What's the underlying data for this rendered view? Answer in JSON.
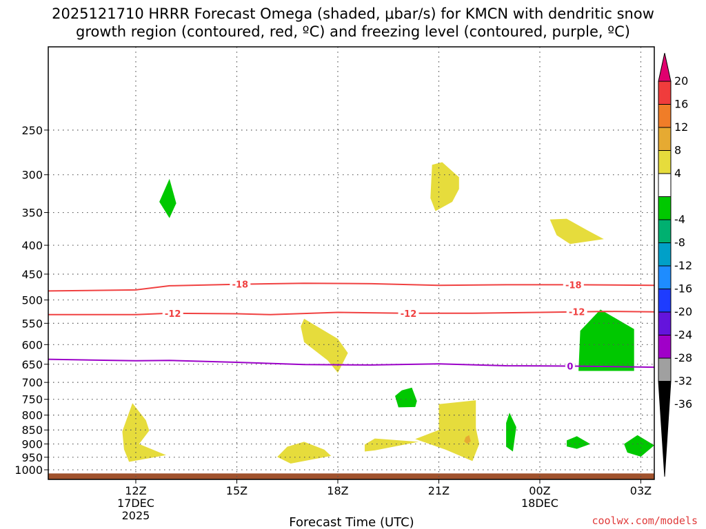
{
  "chart_data": {
    "type": "contour",
    "title_line1": "2025121710 HRRR Forecast Omega (shaded, μbar/s) for KMCN with dendritic snow",
    "title_line2": "growth region (contoured, red, ºC) and freezing level (contoured, purple, ºC)",
    "xlabel": "Forecast Time (UTC)",
    "credit": "coolwx.com/models",
    "x_range_hours": [
      9.4,
      27.4
    ],
    "y_range_hpa": [
      178,
      1040
    ],
    "x_ticks": [
      {
        "hour": 12,
        "label": "12Z",
        "sub1": "17DEC",
        "sub2": "2025"
      },
      {
        "hour": 15,
        "label": "15Z",
        "sub1": "",
        "sub2": ""
      },
      {
        "hour": 18,
        "label": "18Z",
        "sub1": "",
        "sub2": ""
      },
      {
        "hour": 21,
        "label": "21Z",
        "sub1": "",
        "sub2": ""
      },
      {
        "hour": 24,
        "label": "00Z",
        "sub1": "18DEC",
        "sub2": ""
      },
      {
        "hour": 27,
        "label": "03Z",
        "sub1": "",
        "sub2": ""
      }
    ],
    "y_ticks": [
      250,
      300,
      350,
      400,
      450,
      500,
      550,
      600,
      650,
      700,
      750,
      800,
      850,
      900,
      950,
      1000
    ],
    "y_tick_labels": [
      "250",
      "300",
      "350",
      "400",
      "450",
      "500",
      "550",
      "600",
      "650",
      "700",
      "750",
      "800",
      "850",
      "900",
      "950",
      "1000"
    ],
    "colorbar": {
      "labels": [
        "20",
        "16",
        "12",
        "8",
        "4",
        "-4",
        "-8",
        "-12",
        "-16",
        "-20",
        "-24",
        "-28",
        "-32",
        "-36"
      ],
      "colors": [
        "#e0006e",
        "#f03c3c",
        "#f07d28",
        "#e6aa32",
        "#e6dc3c",
        "#ffffff",
        "#00c800",
        "#00b070",
        "#00a0c8",
        "#1e8cff",
        "#1e3cff",
        "#6414dc",
        "#a000c8",
        "#a0a0a0",
        "#000000"
      ]
    },
    "contours": [
      {
        "name": "dgz-minus18",
        "label": "-18",
        "color": "#f04040",
        "points": [
          [
            9.4,
            482
          ],
          [
            12,
            480
          ],
          [
            13,
            472
          ],
          [
            15,
            469
          ],
          [
            17,
            467
          ],
          [
            19,
            468
          ],
          [
            21,
            471
          ],
          [
            23,
            470
          ],
          [
            25,
            470
          ],
          [
            27.4,
            471
          ]
        ],
        "label_hours": [
          15.1,
          25.0
        ]
      },
      {
        "name": "dgz-minus12",
        "label": "-12",
        "color": "#f04040",
        "points": [
          [
            9.4,
            531
          ],
          [
            12,
            531
          ],
          [
            13,
            528
          ],
          [
            15,
            529
          ],
          [
            16,
            531
          ],
          [
            18,
            526
          ],
          [
            20,
            528
          ],
          [
            22,
            528
          ],
          [
            24,
            526
          ],
          [
            26,
            524
          ],
          [
            27.4,
            525
          ]
        ],
        "label_hours": [
          13.1,
          20.1,
          25.1
        ]
      },
      {
        "name": "freezing-level",
        "label": "0",
        "color": "#9b00c8",
        "points": [
          [
            9.4,
            637
          ],
          [
            12,
            641
          ],
          [
            13,
            640
          ],
          [
            15,
            645
          ],
          [
            17,
            651
          ],
          [
            19,
            652
          ],
          [
            21,
            649
          ],
          [
            23,
            654
          ],
          [
            25,
            655
          ],
          [
            27.4,
            658
          ]
        ],
        "label_hours": [
          24.9
        ]
      }
    ],
    "shaded_regions": [
      {
        "category": "omega 4 to 8",
        "color": "#e6dc3c",
        "points": [
          [
            20.8,
            288
          ],
          [
            21.1,
            285
          ],
          [
            21.6,
            303
          ],
          [
            21.6,
            318
          ],
          [
            21.4,
            335
          ],
          [
            20.9,
            348
          ],
          [
            20.75,
            330
          ]
        ]
      },
      {
        "category": "omega 4 to 8",
        "color": "#e6dc3c",
        "points": [
          [
            24.3,
            360
          ],
          [
            24.8,
            359
          ],
          [
            25.4,
            376
          ],
          [
            25.9,
            390
          ],
          [
            24.9,
            398
          ],
          [
            24.5,
            384
          ]
        ]
      },
      {
        "category": "omega 4 to 8",
        "color": "#e6dc3c",
        "points": [
          [
            16.9,
            557
          ],
          [
            17.0,
            540
          ],
          [
            18.0,
            586
          ],
          [
            18.3,
            621
          ],
          [
            18.0,
            673
          ],
          [
            17.7,
            640
          ],
          [
            17.0,
            594
          ]
        ]
      },
      {
        "category": "omega 4 to 8",
        "color": "#e6dc3c",
        "points": [
          [
            21.0,
            765
          ],
          [
            22.1,
            753
          ],
          [
            22.1,
            843
          ],
          [
            22.2,
            900
          ],
          [
            22.0,
            965
          ],
          [
            21.2,
            921
          ],
          [
            20.3,
            882
          ],
          [
            21.0,
            850
          ]
        ]
      },
      {
        "category": "omega 8 to 12",
        "color": "#e6aa32",
        "points": [
          [
            21.8,
            875
          ],
          [
            21.9,
            868
          ],
          [
            21.95,
            890
          ],
          [
            21.85,
            900
          ],
          [
            21.75,
            890
          ]
        ]
      },
      {
        "category": "omega 4 to 8",
        "color": "#e6dc3c",
        "points": [
          [
            11.6,
            855
          ],
          [
            11.9,
            762
          ],
          [
            12.3,
            817
          ],
          [
            12.4,
            852
          ],
          [
            12.1,
            900
          ],
          [
            12.9,
            942
          ],
          [
            11.8,
            968
          ],
          [
            11.65,
            920
          ]
        ]
      },
      {
        "category": "omega 4 to 8",
        "color": "#e6dc3c",
        "points": [
          [
            16.2,
            949
          ],
          [
            16.5,
            910
          ],
          [
            17.0,
            892
          ],
          [
            17.6,
            921
          ],
          [
            17.8,
            945
          ],
          [
            16.6,
            975
          ]
        ]
      },
      {
        "category": "omega 4 to 8",
        "color": "#e6dc3c",
        "points": [
          [
            18.8,
            902
          ],
          [
            19.1,
            880
          ],
          [
            20.4,
            892
          ],
          [
            19.1,
            924
          ],
          [
            18.8,
            928
          ]
        ]
      },
      {
        "category": "omega -4 to -8",
        "color": "#00c800",
        "points": [
          [
            13.0,
            305
          ],
          [
            13.2,
            337
          ],
          [
            13.0,
            358
          ],
          [
            12.7,
            335
          ]
        ]
      },
      {
        "category": "omega -4 to -8",
        "color": "#00c800",
        "points": [
          [
            19.7,
            740
          ],
          [
            19.9,
            723
          ],
          [
            20.2,
            715
          ],
          [
            20.35,
            755
          ],
          [
            20.3,
            774
          ],
          [
            19.8,
            775
          ]
        ]
      },
      {
        "category": "omega -4 to -8",
        "color": "#00c800",
        "points": [
          [
            25.2,
            567
          ],
          [
            25.8,
            520
          ],
          [
            26.8,
            563
          ],
          [
            26.8,
            668
          ],
          [
            25.15,
            668
          ]
        ]
      },
      {
        "category": "omega -4 to -8",
        "color": "#00c800",
        "points": [
          [
            23.0,
            826
          ],
          [
            23.1,
            792
          ],
          [
            23.3,
            840
          ],
          [
            23.2,
            928
          ],
          [
            23.0,
            910
          ]
        ]
      },
      {
        "category": "omega -4 to -8",
        "color": "#00c800",
        "points": [
          [
            24.8,
            887
          ],
          [
            25.1,
            872
          ],
          [
            25.5,
            900
          ],
          [
            25.1,
            918
          ],
          [
            24.8,
            909
          ]
        ]
      },
      {
        "category": "omega -4 to -8",
        "color": "#00c800",
        "points": [
          [
            26.5,
            900
          ],
          [
            26.9,
            868
          ],
          [
            27.4,
            905
          ],
          [
            27.0,
            948
          ],
          [
            26.6,
            932
          ]
        ]
      }
    ],
    "terrain_color": "#a0522d",
    "terrain_top_hpa": 1015
  }
}
